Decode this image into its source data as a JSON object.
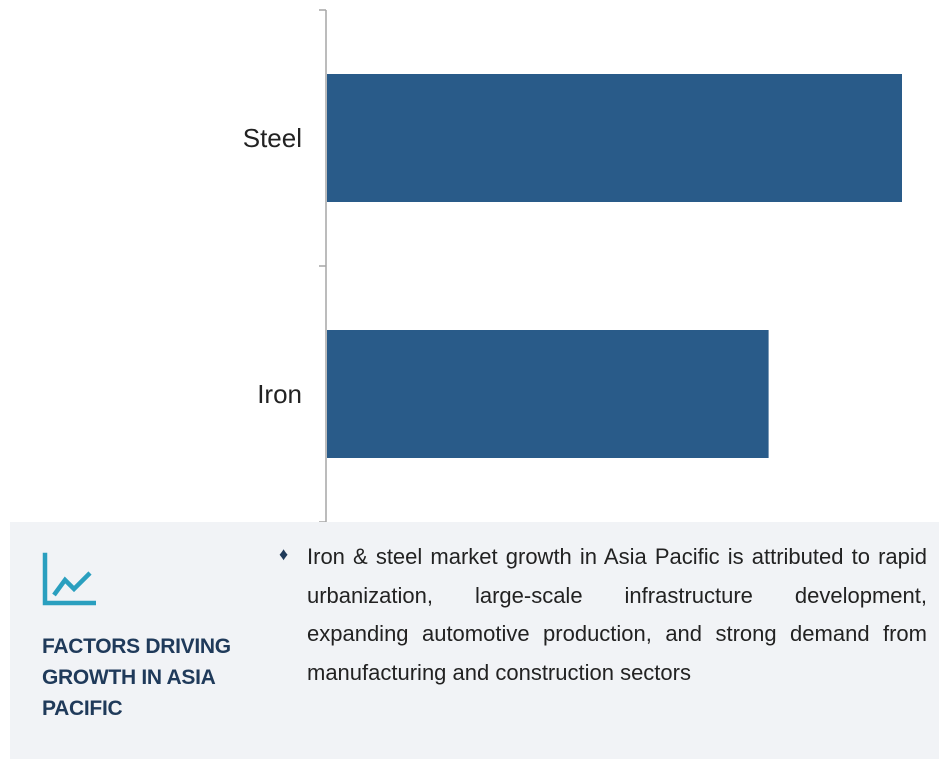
{
  "chart_data": {
    "type": "bar",
    "orientation": "horizontal",
    "categories": [
      "Steel",
      "Iron"
    ],
    "values": [
      100,
      76.8
    ],
    "xlim": [
      0,
      100
    ],
    "title": "",
    "xlabel": "",
    "ylabel": "",
    "grid": false,
    "bar_color": "#295b89"
  },
  "factors": {
    "icon": "growth-chart-icon",
    "icon_color": "#2a9fbf",
    "title": "FACTORS DRIVING GROWTH IN ASIA PACIFIC",
    "bullet": "♦",
    "text": "Iron & steel market growth in Asia Pacific is attributed to rapid urbanization, large-scale infrastructure development, expanding automotive production, and strong demand from manufacturing and construction sectors"
  }
}
